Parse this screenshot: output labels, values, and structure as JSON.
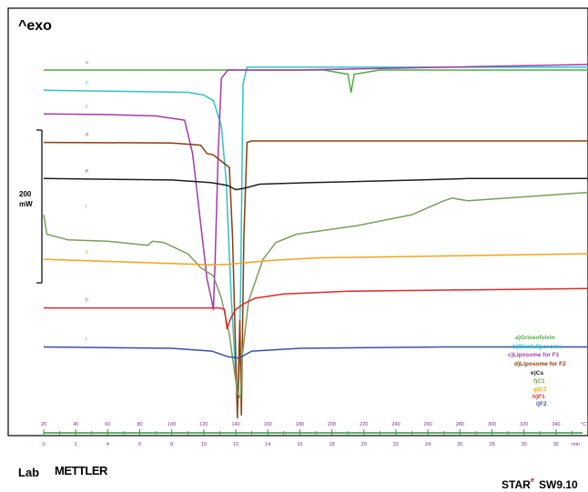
{
  "header": {
    "exo_label": "^exo"
  },
  "scale": {
    "value": "200",
    "unit": "mW"
  },
  "footer": {
    "left_lab": "Lab",
    "left_brand": "METTLER",
    "right_prefix": "STAR",
    "right_mark": "e",
    "right_suffix": "SW9.10"
  },
  "chart_data": {
    "type": "line",
    "title": "",
    "xlabel": "",
    "ylabel": "",
    "axis_top": {
      "unit": "°C",
      "ticks": [
        20,
        40,
        60,
        80,
        100,
        120,
        140,
        160,
        180,
        200,
        220,
        240,
        260,
        280,
        300,
        320,
        340
      ],
      "range": [
        20,
        360
      ]
    },
    "axis_bottom": {
      "unit": "min",
      "ticks": [
        0,
        2,
        4,
        6,
        8,
        10,
        12,
        14,
        16,
        18,
        20,
        22,
        24,
        26,
        28,
        30,
        32
      ],
      "range": [
        0,
        34
      ]
    },
    "legend_position": "right",
    "series": [
      {
        "id": "a",
        "name": "a)Griseofulvin",
        "color": "#4caf3e",
        "baseline": 0.0,
        "points": [
          [
            20,
            0
          ],
          [
            195,
            0
          ],
          [
            210,
            0.15
          ],
          [
            212,
            0.8
          ],
          [
            214,
            0.15
          ],
          [
            230,
            0
          ],
          [
            360,
            0
          ]
        ]
      },
      {
        "id": "b",
        "name": "b)Blank liposome",
        "color": "#2ec3cc",
        "baseline": 0.73,
        "points": [
          [
            20,
            0.73
          ],
          [
            110,
            0.8
          ],
          [
            120,
            0.9
          ],
          [
            126,
            1.1
          ],
          [
            131,
            2.0
          ],
          [
            134,
            4.0
          ],
          [
            137,
            8.0
          ],
          [
            140,
            11.0
          ],
          [
            141.5,
            11.8
          ],
          [
            143,
            8.0
          ],
          [
            144.5,
            0.5
          ],
          [
            147,
            -0.1
          ],
          [
            180,
            -0.1
          ],
          [
            360,
            -0.1
          ]
        ]
      },
      {
        "id": "c",
        "name": "c)Liposome for F1",
        "color": "#a43aa8",
        "baseline": 1.58,
        "points": [
          [
            20,
            1.58
          ],
          [
            60,
            1.6
          ],
          [
            90,
            1.65
          ],
          [
            108,
            1.8
          ],
          [
            113,
            3.0
          ],
          [
            118,
            5.5
          ],
          [
            122,
            7.5
          ],
          [
            125,
            8.3
          ],
          [
            126,
            8.6
          ],
          [
            127,
            7.0
          ],
          [
            129,
            3.0
          ],
          [
            131,
            0.3
          ],
          [
            135,
            0
          ],
          [
            180,
            0
          ],
          [
            360,
            -0.2
          ]
        ]
      },
      {
        "id": "d",
        "name": "d)Liposome for F2",
        "color": "#8b3b0f",
        "baseline": 2.6,
        "points": [
          [
            20,
            2.6
          ],
          [
            100,
            2.62
          ],
          [
            118,
            2.7
          ],
          [
            122,
            3.0
          ],
          [
            126,
            3.05
          ],
          [
            136,
            3.5
          ],
          [
            138,
            6.0
          ],
          [
            141,
            12.5
          ],
          [
            142.5,
            9.0
          ],
          [
            143.5,
            12.4
          ],
          [
            145,
            6.0
          ],
          [
            147,
            2.6
          ],
          [
            150,
            2.55
          ],
          [
            360,
            2.55
          ]
        ]
      },
      {
        "id": "e",
        "name": "e)Cs",
        "color": "#1e1e1e",
        "baseline": 3.9,
        "points": [
          [
            20,
            3.9
          ],
          [
            100,
            3.95
          ],
          [
            125,
            4.05
          ],
          [
            135,
            4.15
          ],
          [
            140,
            4.3
          ],
          [
            145,
            4.25
          ],
          [
            155,
            4.1
          ],
          [
            185,
            4.05
          ],
          [
            255,
            3.95
          ],
          [
            285,
            3.9
          ],
          [
            360,
            3.9
          ]
        ]
      },
      {
        "id": "f",
        "name": "f)C1",
        "color": "#7a9e5a",
        "baseline": 5.2,
        "points": [
          [
            20,
            5.2
          ],
          [
            22,
            5.9
          ],
          [
            35,
            6.1
          ],
          [
            60,
            6.15
          ],
          [
            85,
            6.3
          ],
          [
            88,
            6.15
          ],
          [
            95,
            6.2
          ],
          [
            110,
            6.6
          ],
          [
            118,
            7.1
          ],
          [
            126,
            7.4
          ],
          [
            131,
            8.2
          ],
          [
            136,
            9.5
          ],
          [
            141,
            11.6
          ],
          [
            143,
            11.8
          ],
          [
            144,
            10.3
          ],
          [
            148,
            8.3
          ],
          [
            157,
            6.8
          ],
          [
            165,
            6.2
          ],
          [
            178,
            5.9
          ],
          [
            215,
            5.6
          ],
          [
            250,
            5.2
          ],
          [
            270,
            4.7
          ],
          [
            275,
            4.6
          ],
          [
            285,
            4.7
          ],
          [
            360,
            4.4
          ]
        ]
      },
      {
        "id": "g",
        "name": "g)C2",
        "color": "#f7a21c",
        "baseline": 6.8,
        "points": [
          [
            20,
            6.8
          ],
          [
            100,
            6.95
          ],
          [
            125,
            7.0
          ],
          [
            136,
            6.98
          ],
          [
            160,
            6.85
          ],
          [
            190,
            6.75
          ],
          [
            360,
            6.6
          ]
        ]
      },
      {
        "id": "h",
        "name": "h)F1",
        "color": "#e0282a",
        "baseline": 8.55,
        "points": [
          [
            20,
            8.55
          ],
          [
            130,
            8.55
          ],
          [
            133,
            8.6
          ],
          [
            134.5,
            9.3
          ],
          [
            137,
            8.9
          ],
          [
            140,
            8.6
          ],
          [
            145,
            8.4
          ],
          [
            152,
            8.2
          ],
          [
            170,
            8.05
          ],
          [
            210,
            7.95
          ],
          [
            360,
            7.85
          ]
        ]
      },
      {
        "id": "i",
        "name": "i)F2",
        "color": "#3a4fa8",
        "baseline": 9.95,
        "points": [
          [
            20,
            9.95
          ],
          [
            100,
            10.0
          ],
          [
            125,
            10.1
          ],
          [
            135,
            10.3
          ],
          [
            142,
            10.35
          ],
          [
            150,
            10.1
          ],
          [
            180,
            10.0
          ],
          [
            270,
            9.95
          ],
          [
            360,
            9.95
          ]
        ]
      }
    ]
  }
}
